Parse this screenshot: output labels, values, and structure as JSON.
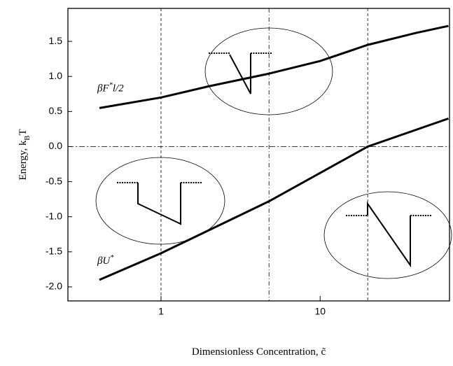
{
  "chart_data": {
    "type": "line",
    "xlabel": {
      "parts": [
        "Dimensionless Concentration, ",
        "c̃"
      ]
    },
    "ylabel": {
      "parts": [
        "Energy, k",
        "B",
        "T"
      ]
    },
    "xlog": true,
    "xlim": [
      0.26,
      65
    ],
    "ylim": [
      -2.2,
      1.97
    ],
    "xticks": [
      1,
      10
    ],
    "yticks": [
      {
        "value": -2,
        "label": "-2.0"
      },
      -1.5,
      {
        "value": -1,
        "label": "-1.0"
      },
      -0.5,
      {
        "value": 0,
        "label": "0.0"
      },
      0.5,
      {
        "value": 1,
        "label": "1.0"
      },
      1.5
    ],
    "vlines": [
      1,
      4.77,
      19.9
    ],
    "hline": 0,
    "series": [
      {
        "name": [
          "βF",
          "*",
          "l/2"
        ],
        "color": "#000000",
        "x": [
          0.41,
          1,
          2,
          4.77,
          10,
          19.9,
          40,
          64
        ],
        "values": [
          0.55,
          0.7,
          0.86,
          1.04,
          1.22,
          1.45,
          1.62,
          1.72
        ]
      },
      {
        "name": [
          "βU",
          "*"
        ],
        "color": "#000000",
        "x": [
          0.41,
          1,
          4.77,
          19.9,
          64
        ],
        "values": [
          -1.9,
          -1.52,
          -0.78,
          0,
          0.4
        ]
      }
    ]
  }
}
